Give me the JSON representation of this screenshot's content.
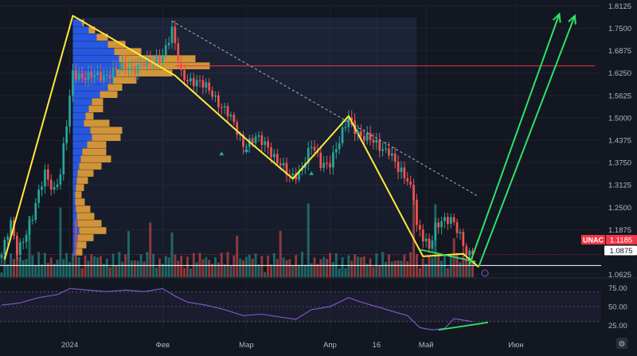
{
  "chart_data": {
    "type": "candlestick",
    "title": "",
    "price_axis": {
      "ticks": [
        "1.8125",
        "1.7500",
        "1.6875",
        "1.6250",
        "1.5625",
        "1.5000",
        "1.4375",
        "1.3750",
        "1.3125",
        "1.2500",
        "1.1875",
        "1.0625"
      ],
      "tick_values": [
        1.8125,
        1.75,
        1.6875,
        1.625,
        1.5625,
        1.5,
        1.4375,
        1.375,
        1.3125,
        1.25,
        1.1875,
        1.0625
      ],
      "range": [
        1.055,
        1.82
      ]
    },
    "rsi_axis": {
      "ticks": [
        "75.00",
        "50.00",
        "25.00"
      ],
      "tick_values": [
        75,
        50,
        25
      ],
      "range": [
        15,
        85
      ],
      "band": [
        30,
        70
      ]
    },
    "time_axis": {
      "labels": [
        "2024",
        "Фев",
        "Мар",
        "Апр",
        "16",
        "Май",
        "Июн"
      ],
      "label_index": [
        22,
        52,
        79,
        106,
        121,
        137,
        166
      ],
      "total_index": 194
    },
    "ticker": {
      "label": "UNAC",
      "last_price": "1.1185",
      "last_value": 1.1185
    },
    "level_label": {
      "text": "1.0875",
      "value": 1.0875
    },
    "resistance_level": 1.645,
    "zigzag": [
      {
        "i": 1,
        "p": 1.105
      },
      {
        "i": 23,
        "p": 1.785
      },
      {
        "i": 56,
        "p": 1.618
      },
      {
        "i": 79,
        "p": 1.44
      },
      {
        "i": 94,
        "p": 1.33
      },
      {
        "i": 112,
        "p": 1.505
      },
      {
        "i": 136,
        "p": 1.113
      },
      {
        "i": 149,
        "p": 1.12
      },
      {
        "i": 154,
        "p": 1.083
      }
    ],
    "trend_line": [
      {
        "i": 55,
        "p": 1.77
      },
      {
        "i": 154,
        "p": 1.28
      }
    ],
    "projection_arrows": [
      [
        {
          "i": 151,
          "p": 1.09
        },
        {
          "i": 180,
          "p": 1.79
        }
      ],
      [
        {
          "i": 154,
          "p": 1.085
        },
        {
          "i": 185,
          "p": 1.785
        }
      ]
    ],
    "divergence_price": [
      {
        "i": 135,
        "p": 1.132
      },
      {
        "i": 153,
        "p": 1.098
      }
    ],
    "divergence_rsi": [
      {
        "i": 141,
        "v": 19
      },
      {
        "i": 157,
        "v": 29
      }
    ],
    "colors": {
      "background": "#131722",
      "up": "#26a69a",
      "down": "#ef5350",
      "zigzag": "#ffeb3b",
      "arrows": "#2ee06b",
      "rsi": "#7e57c2",
      "volume_profile_up": "#2962ff",
      "volume_profile_down": "#f2a93b",
      "resistance": "#f23645",
      "axis_text": "#b2b5be",
      "ticker_bg": "#f23645"
    },
    "volume_profile": [
      {
        "p": 1.765,
        "a": 12,
        "b": 2
      },
      {
        "p": 1.745,
        "a": 20,
        "b": 8
      },
      {
        "p": 1.725,
        "a": 30,
        "b": 14
      },
      {
        "p": 1.705,
        "a": 44,
        "b": 22
      },
      {
        "p": 1.685,
        "a": 52,
        "b": 34
      },
      {
        "p": 1.665,
        "a": 58,
        "b": 96
      },
      {
        "p": 1.645,
        "a": 60,
        "b": 112
      },
      {
        "p": 1.625,
        "a": 55,
        "b": 70
      },
      {
        "p": 1.605,
        "a": 50,
        "b": 30
      },
      {
        "p": 1.585,
        "a": 44,
        "b": 18
      },
      {
        "p": 1.565,
        "a": 34,
        "b": 22
      },
      {
        "p": 1.545,
        "a": 24,
        "b": 14
      },
      {
        "p": 1.525,
        "a": 20,
        "b": 18
      },
      {
        "p": 1.505,
        "a": 16,
        "b": 10
      },
      {
        "p": 1.485,
        "a": 14,
        "b": 32
      },
      {
        "p": 1.465,
        "a": 22,
        "b": 40
      },
      {
        "p": 1.445,
        "a": 24,
        "b": 36
      },
      {
        "p": 1.425,
        "a": 18,
        "b": 24
      },
      {
        "p": 1.405,
        "a": 12,
        "b": 30
      },
      {
        "p": 1.385,
        "a": 10,
        "b": 38
      },
      {
        "p": 1.365,
        "a": 8,
        "b": 28
      },
      {
        "p": 1.345,
        "a": 6,
        "b": 20
      },
      {
        "p": 1.325,
        "a": 5,
        "b": 14
      },
      {
        "p": 1.305,
        "a": 4,
        "b": 10
      },
      {
        "p": 1.285,
        "a": 3,
        "b": 8
      },
      {
        "p": 1.265,
        "a": 3,
        "b": 12
      },
      {
        "p": 1.245,
        "a": 4,
        "b": 18
      },
      {
        "p": 1.225,
        "a": 5,
        "b": 22
      },
      {
        "p": 1.205,
        "a": 6,
        "b": 30
      },
      {
        "p": 1.185,
        "a": 8,
        "b": 34
      },
      {
        "p": 1.165,
        "a": 6,
        "b": 20
      },
      {
        "p": 1.145,
        "a": 5,
        "b": 12
      },
      {
        "p": 1.125,
        "a": 4,
        "b": 8
      }
    ],
    "series": [
      {
        "name": "UNAC",
        "anchors": [
          {
            "i": 0,
            "p": 1.118
          },
          {
            "i": 3,
            "p": 1.2
          },
          {
            "i": 5,
            "p": 1.13
          },
          {
            "i": 10,
            "p": 1.22
          },
          {
            "i": 14,
            "p": 1.35
          },
          {
            "i": 17,
            "p": 1.3
          },
          {
            "i": 19,
            "p": 1.34
          },
          {
            "i": 21,
            "p": 1.48
          },
          {
            "i": 23,
            "p": 1.63
          },
          {
            "i": 28,
            "p": 1.61
          },
          {
            "i": 33,
            "p": 1.62
          },
          {
            "i": 40,
            "p": 1.64
          },
          {
            "i": 48,
            "p": 1.65
          },
          {
            "i": 52,
            "p": 1.68
          },
          {
            "i": 55,
            "p": 1.74
          },
          {
            "i": 58,
            "p": 1.62
          },
          {
            "i": 63,
            "p": 1.6
          },
          {
            "i": 68,
            "p": 1.57
          },
          {
            "i": 73,
            "p": 1.51
          },
          {
            "i": 78,
            "p": 1.43
          },
          {
            "i": 82,
            "p": 1.44
          },
          {
            "i": 86,
            "p": 1.42
          },
          {
            "i": 90,
            "p": 1.37
          },
          {
            "i": 93,
            "p": 1.33
          },
          {
            "i": 96,
            "p": 1.35
          },
          {
            "i": 100,
            "p": 1.42
          },
          {
            "i": 103,
            "p": 1.37
          },
          {
            "i": 106,
            "p": 1.38
          },
          {
            "i": 109,
            "p": 1.43
          },
          {
            "i": 112,
            "p": 1.5
          },
          {
            "i": 116,
            "p": 1.45
          },
          {
            "i": 120,
            "p": 1.43
          },
          {
            "i": 125,
            "p": 1.41
          },
          {
            "i": 128,
            "p": 1.35
          },
          {
            "i": 131,
            "p": 1.33
          },
          {
            "i": 133,
            "p": 1.29
          },
          {
            "i": 134,
            "p": 1.2
          },
          {
            "i": 136,
            "p": 1.16
          },
          {
            "i": 138,
            "p": 1.13
          },
          {
            "i": 140,
            "p": 1.2
          },
          {
            "i": 142,
            "p": 1.22
          },
          {
            "i": 145,
            "p": 1.21
          },
          {
            "i": 148,
            "p": 1.17
          },
          {
            "i": 150,
            "p": 1.13
          },
          {
            "i": 152,
            "p": 1.1185
          }
        ]
      }
    ],
    "rsi": [
      {
        "i": 0,
        "v": 52
      },
      {
        "i": 6,
        "v": 55
      },
      {
        "i": 12,
        "v": 62
      },
      {
        "i": 18,
        "v": 66
      },
      {
        "i": 22,
        "v": 74
      },
      {
        "i": 28,
        "v": 72
      },
      {
        "i": 34,
        "v": 70
      },
      {
        "i": 40,
        "v": 72
      },
      {
        "i": 46,
        "v": 70
      },
      {
        "i": 52,
        "v": 74
      },
      {
        "i": 56,
        "v": 64
      },
      {
        "i": 60,
        "v": 56
      },
      {
        "i": 66,
        "v": 52
      },
      {
        "i": 72,
        "v": 46
      },
      {
        "i": 78,
        "v": 38
      },
      {
        "i": 84,
        "v": 40
      },
      {
        "i": 90,
        "v": 36
      },
      {
        "i": 95,
        "v": 33
      },
      {
        "i": 100,
        "v": 46
      },
      {
        "i": 106,
        "v": 50
      },
      {
        "i": 112,
        "v": 62
      },
      {
        "i": 116,
        "v": 56
      },
      {
        "i": 121,
        "v": 50
      },
      {
        "i": 126,
        "v": 44
      },
      {
        "i": 131,
        "v": 38
      },
      {
        "i": 135,
        "v": 22
      },
      {
        "i": 139,
        "v": 19
      },
      {
        "i": 143,
        "v": 21
      },
      {
        "i": 146,
        "v": 34
      },
      {
        "i": 149,
        "v": 32
      },
      {
        "i": 152,
        "v": 30
      }
    ]
  }
}
